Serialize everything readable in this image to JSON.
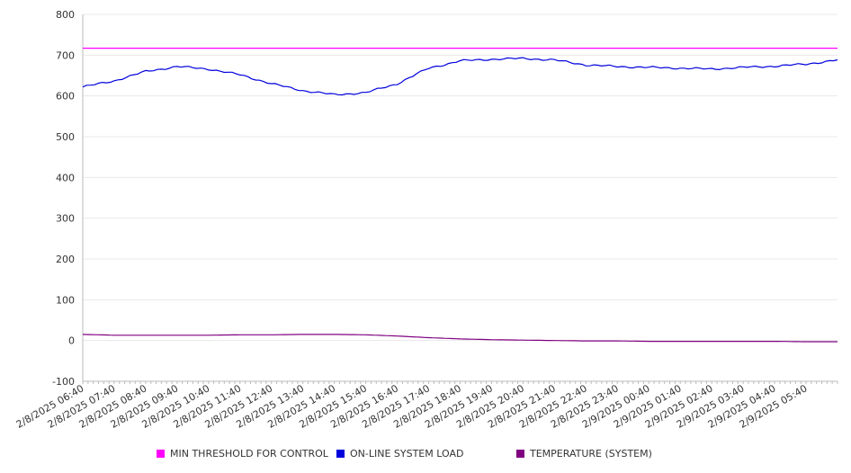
{
  "chart_data": {
    "type": "line",
    "ylim": [
      -100,
      800
    ],
    "yticks": [
      800,
      700,
      600,
      500,
      400,
      300,
      200,
      100,
      0,
      -100
    ],
    "grid": true,
    "legend_position": "bottom",
    "x_tick_labels": [
      "2/8/2025 06:40",
      "2/8/2025 07:40",
      "2/8/2025 08:40",
      "2/8/2025 09:40",
      "2/8/2025 10:40",
      "2/8/2025 11:40",
      "2/8/2025 12:40",
      "2/8/2025 13:40",
      "2/8/2025 14:40",
      "2/8/2025 15:40",
      "2/8/2025 16:40",
      "2/8/2025 17:40",
      "2/8/2025 18:40",
      "2/8/2025 19:40",
      "2/8/2025 20:40",
      "2/8/2025 21:40",
      "2/8/2025 22:40",
      "2/8/2025 23:40",
      "2/9/2025 00:40",
      "2/9/2025 01:40",
      "2/9/2025 02:40",
      "2/9/2025 03:40",
      "2/9/2025 04:40",
      "2/9/2025 05:40"
    ],
    "x_hours": [
      0,
      1,
      2,
      3,
      4,
      5,
      6,
      7,
      8,
      9,
      10,
      11,
      12,
      13,
      14,
      15,
      16,
      17,
      18,
      19,
      20,
      21,
      22,
      23,
      24
    ],
    "series": [
      {
        "name": "MIN THRESHOLD FOR CONTROL",
        "color": "#ff00ff",
        "values": [
          717,
          717,
          717,
          717,
          717,
          717,
          717,
          717,
          717,
          717,
          717,
          717,
          717,
          717,
          717,
          717,
          717,
          717,
          717,
          717,
          717,
          717,
          717,
          717,
          717
        ]
      },
      {
        "name": "ON-LINE SYSTEM LOAD",
        "color": "#0000dd",
        "values": [
          622,
          637,
          660,
          672,
          666,
          652,
          630,
          613,
          603,
          608,
          630,
          668,
          686,
          690,
          692,
          688,
          676,
          672,
          670,
          668,
          666,
          670,
          673,
          678,
          688
        ]
      },
      {
        "name": "TEMPERATURE (SYSTEM)",
        "color": "#800080",
        "values": [
          15,
          13,
          13,
          13,
          13,
          14,
          14,
          15,
          15,
          14,
          11,
          7,
          4,
          2,
          1,
          0,
          -1,
          -1,
          -2,
          -2,
          -2,
          -2,
          -2,
          -3,
          -3
        ]
      }
    ]
  }
}
